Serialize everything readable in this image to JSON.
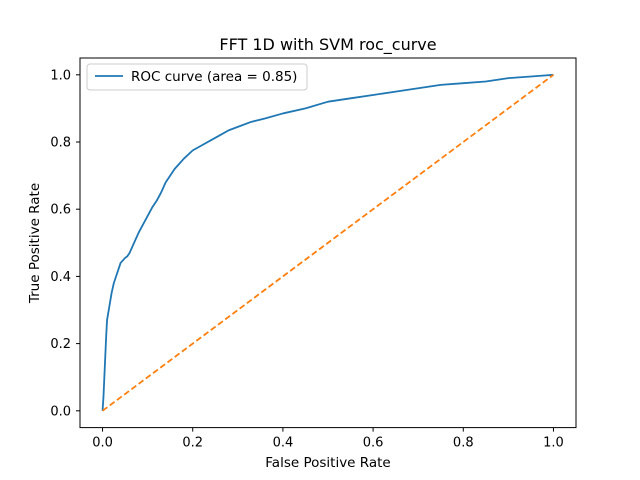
{
  "chart_data": {
    "type": "line",
    "title": "FFT 1D with SVM roc_curve",
    "xlabel": "False Positive Rate",
    "ylabel": "True Positive Rate",
    "xlim": [
      -0.05,
      1.05
    ],
    "ylim": [
      -0.05,
      1.05
    ],
    "xticks": [
      0.0,
      0.2,
      0.4,
      0.6,
      0.8,
      1.0
    ],
    "xtick_labels": [
      "0.0",
      "0.2",
      "0.4",
      "0.6",
      "0.8",
      "1.0"
    ],
    "yticks": [
      0.0,
      0.2,
      0.4,
      0.6,
      0.8,
      1.0
    ],
    "ytick_labels": [
      "0.0",
      "0.2",
      "0.4",
      "0.6",
      "0.8",
      "1.0"
    ],
    "grid": false,
    "legend_position": "upper-left",
    "series": [
      {
        "name": "ROC curve (area = 0.85)",
        "color": "#1f77b4",
        "style": "solid",
        "x": [
          0.0,
          0.002,
          0.004,
          0.006,
          0.008,
          0.01,
          0.015,
          0.02,
          0.025,
          0.03,
          0.035,
          0.04,
          0.05,
          0.055,
          0.06,
          0.07,
          0.08,
          0.09,
          0.1,
          0.11,
          0.12,
          0.13,
          0.14,
          0.15,
          0.16,
          0.17,
          0.18,
          0.2,
          0.22,
          0.24,
          0.26,
          0.28,
          0.3,
          0.33,
          0.36,
          0.4,
          0.45,
          0.5,
          0.55,
          0.6,
          0.65,
          0.7,
          0.75,
          0.8,
          0.85,
          0.9,
          0.95,
          0.98,
          1.0
        ],
        "y": [
          0.0,
          0.04,
          0.1,
          0.16,
          0.22,
          0.27,
          0.31,
          0.35,
          0.38,
          0.4,
          0.42,
          0.44,
          0.455,
          0.46,
          0.47,
          0.5,
          0.53,
          0.555,
          0.58,
          0.605,
          0.625,
          0.65,
          0.68,
          0.7,
          0.72,
          0.735,
          0.75,
          0.775,
          0.79,
          0.805,
          0.82,
          0.835,
          0.845,
          0.86,
          0.87,
          0.885,
          0.9,
          0.92,
          0.93,
          0.94,
          0.95,
          0.96,
          0.97,
          0.975,
          0.98,
          0.99,
          0.995,
          0.998,
          1.0
        ]
      },
      {
        "name": "",
        "color": "#ff7f0e",
        "style": "dashed",
        "x": [
          0.0,
          1.0
        ],
        "y": [
          0.0,
          1.0
        ]
      }
    ]
  }
}
